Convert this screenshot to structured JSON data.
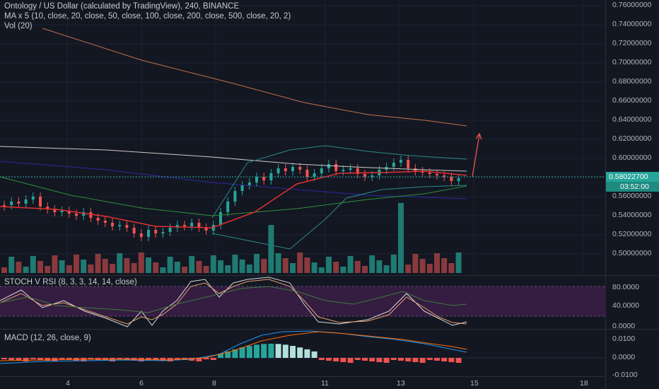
{
  "header": {
    "symbol_line": "Ontology / US Dollar (calculated by TradingView), 240, BINANCE",
    "ma_line": "MA x 5 (10, close, 20, close, 50, close, 100, close, 200, close, 500, close, 20, 2)",
    "vol_line": "Vol (20)"
  },
  "price_axis": [
    "0.76000000",
    "0.74000000",
    "0.72000000",
    "0.70000000",
    "0.68000000",
    "0.66000000",
    "0.64000000",
    "0.62000000",
    "0.60000000",
    "0.56000000",
    "0.54000000",
    "0.52000000",
    "0.50000000"
  ],
  "last_price": "0.58022700",
  "countdown": "03:52:00",
  "stoch": {
    "label": "STOCH V RSI (8, 3, 3, 14, 14, close)",
    "axis": [
      "80.0000",
      "40.0000",
      "0.0000"
    ]
  },
  "macd": {
    "label": "MACD (12, 26, close, 9)",
    "axis": [
      "0.0100",
      "0.0000",
      "-0.0100"
    ]
  },
  "dates": [
    "4",
    "6",
    "8",
    "11",
    "13",
    "15",
    "18"
  ],
  "colors": {
    "background": "#131722",
    "up": "#26a69a",
    "down": "#ef5350",
    "price_tag": "#26a69a",
    "stoch_band": "#3b1f46"
  }
}
